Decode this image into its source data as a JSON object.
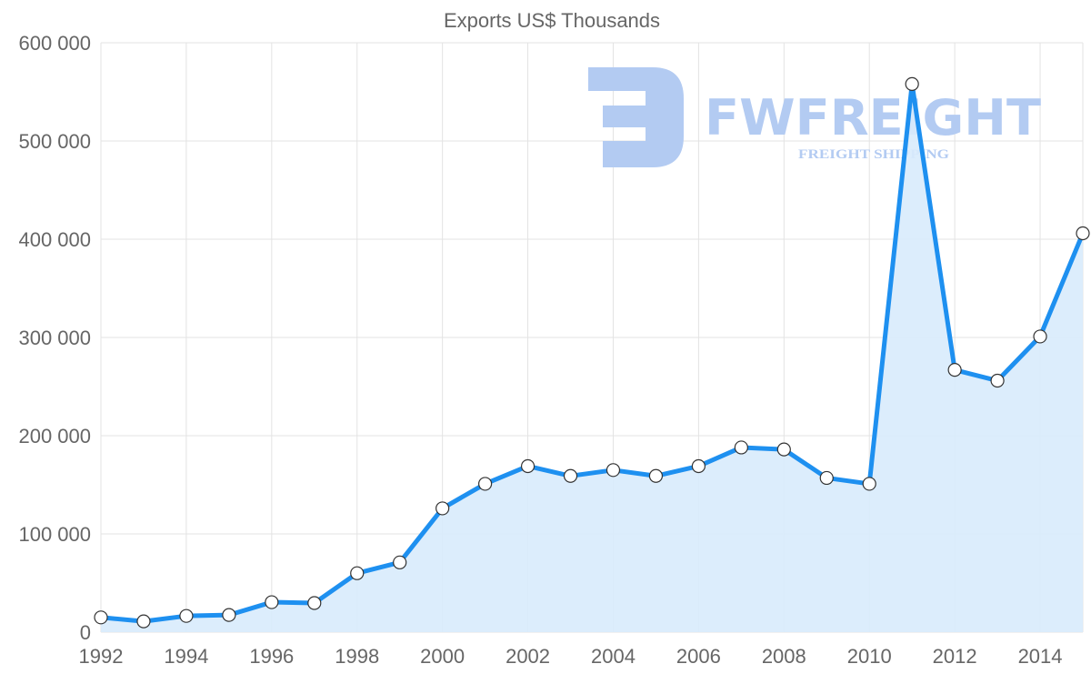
{
  "chart_data": {
    "type": "area",
    "title": "Exports US$ Thousands",
    "xlabel": "",
    "ylabel": "",
    "ylim": [
      0,
      600000
    ],
    "xlim": [
      1992,
      2015
    ],
    "grid": true,
    "legend": "none",
    "y_ticks": [
      0,
      100000,
      200000,
      300000,
      400000,
      500000,
      600000
    ],
    "y_tick_labels": [
      "0",
      "100 000",
      "200 000",
      "300 000",
      "400 000",
      "500 000",
      "600 000"
    ],
    "x_tick_labels": [
      "1992",
      "1994",
      "1996",
      "1998",
      "2000",
      "2002",
      "2004",
      "2006",
      "2008",
      "2010",
      "2012",
      "2014"
    ],
    "series": [
      {
        "name": "Exports US$ Thousands",
        "color": "#1e90f0",
        "fill": "#d8ebfc",
        "x": [
          1992,
          1993,
          1994,
          1995,
          1996,
          1997,
          1998,
          1999,
          2000,
          2001,
          2002,
          2003,
          2004,
          2005,
          2006,
          2007,
          2008,
          2009,
          2010,
          2011,
          2012,
          2013,
          2014,
          2015
        ],
        "values": [
          15000,
          11000,
          16500,
          17500,
          30500,
          29600,
          60000,
          71000,
          126000,
          151000,
          169000,
          159000,
          165000,
          159000,
          169000,
          188000,
          186000,
          157000,
          151000,
          558000,
          267000,
          256000,
          301000,
          406000
        ]
      }
    ]
  },
  "watermark": {
    "brand": "FWFREIGHT",
    "tagline": "FREIGHT SHIPPING",
    "color": "#b3cbf2"
  }
}
